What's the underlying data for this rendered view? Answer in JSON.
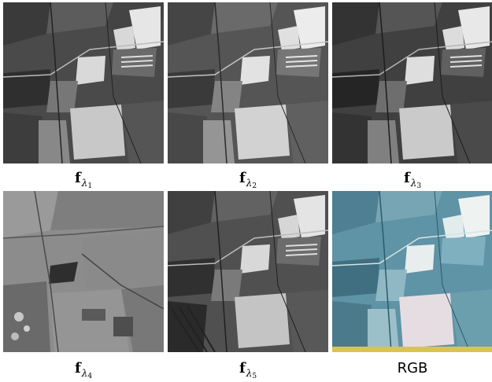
{
  "panels": [
    {
      "caption_base": "f",
      "caption_sub": "λ",
      "caption_index": "1"
    },
    {
      "caption_base": "f",
      "caption_sub": "λ",
      "caption_index": "2"
    },
    {
      "caption_base": "f",
      "caption_sub": "λ",
      "caption_index": "3"
    },
    {
      "caption_base": "f",
      "caption_sub": "λ",
      "caption_index": "4"
    },
    {
      "caption_base": "f",
      "caption_sub": "λ",
      "caption_index": "5"
    },
    {
      "caption_text": "RGB"
    }
  ]
}
